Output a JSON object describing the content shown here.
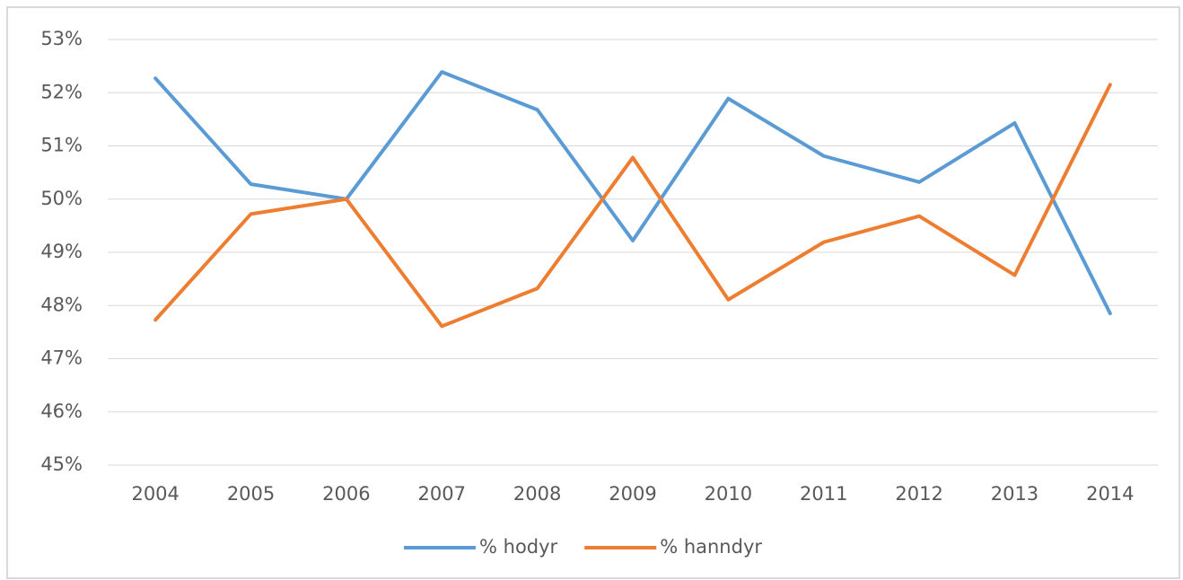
{
  "chart_data": {
    "type": "line",
    "categories": [
      "2004",
      "2005",
      "2006",
      "2007",
      "2008",
      "2009",
      "2010",
      "2011",
      "2012",
      "2013",
      "2014"
    ],
    "series": [
      {
        "name": "% hodyr",
        "color": "#5b9bd5",
        "values": [
          52.27,
          50.28,
          50.0,
          52.39,
          51.68,
          49.22,
          51.89,
          50.81,
          50.32,
          51.43,
          47.85
        ]
      },
      {
        "name": "% hanndyr",
        "color": "#ed7d31",
        "values": [
          47.73,
          49.72,
          50.0,
          47.61,
          48.32,
          50.78,
          48.11,
          49.19,
          49.68,
          48.57,
          52.15
        ]
      }
    ],
    "ylim": [
      45,
      53
    ],
    "yticks": [
      {
        "value": 45,
        "label": "45%"
      },
      {
        "value": 46,
        "label": "46%"
      },
      {
        "value": 47,
        "label": "47%"
      },
      {
        "value": 48,
        "label": "48%"
      },
      {
        "value": 49,
        "label": "49%"
      },
      {
        "value": 50,
        "label": "50%"
      },
      {
        "value": 51,
        "label": "51%"
      },
      {
        "value": 52,
        "label": "52%"
      },
      {
        "value": 53,
        "label": "53%"
      }
    ],
    "grid": true,
    "legend": "bottom"
  }
}
